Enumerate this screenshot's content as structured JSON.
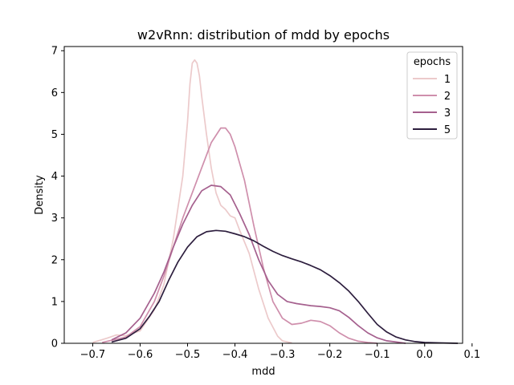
{
  "chart_data": {
    "type": "line",
    "title": "w2vRnn: distribution of mdd by epochs",
    "xlabel": "mdd",
    "ylabel": "Density",
    "xlim": [
      -0.76,
      0.08
    ],
    "ylim": [
      0,
      7.1
    ],
    "xticks": [
      -0.7,
      -0.6,
      -0.5,
      -0.4,
      -0.3,
      -0.2,
      -0.1,
      0.0,
      0.1
    ],
    "xtick_labels": [
      "−0.7",
      "−0.6",
      "−0.5",
      "−0.4",
      "−0.3",
      "−0.2",
      "−0.1",
      "0.0",
      "0.1"
    ],
    "yticks": [
      0,
      1,
      2,
      3,
      4,
      5,
      6,
      7
    ],
    "ytick_labels": [
      "0",
      "1",
      "2",
      "3",
      "4",
      "5",
      "6",
      "7"
    ],
    "grid": false,
    "legend": {
      "title": "epochs",
      "placement": "top-right"
    },
    "series": [
      {
        "name": "1",
        "color": "#eccacb",
        "points": [
          [
            -0.7,
            0.02
          ],
          [
            -0.67,
            0.12
          ],
          [
            -0.65,
            0.2
          ],
          [
            -0.63,
            0.18
          ],
          [
            -0.6,
            0.3
          ],
          [
            -0.57,
            0.8
          ],
          [
            -0.55,
            1.4
          ],
          [
            -0.53,
            2.5
          ],
          [
            -0.51,
            4.0
          ],
          [
            -0.5,
            5.3
          ],
          [
            -0.495,
            6.2
          ],
          [
            -0.49,
            6.7
          ],
          [
            -0.485,
            6.78
          ],
          [
            -0.48,
            6.7
          ],
          [
            -0.475,
            6.4
          ],
          [
            -0.47,
            5.9
          ],
          [
            -0.46,
            5.0
          ],
          [
            -0.45,
            4.2
          ],
          [
            -0.44,
            3.6
          ],
          [
            -0.43,
            3.3
          ],
          [
            -0.42,
            3.2
          ],
          [
            -0.41,
            3.05
          ],
          [
            -0.4,
            3.0
          ],
          [
            -0.39,
            2.7
          ],
          [
            -0.37,
            2.15
          ],
          [
            -0.35,
            1.3
          ],
          [
            -0.33,
            0.6
          ],
          [
            -0.31,
            0.17
          ],
          [
            -0.3,
            0.06
          ],
          [
            -0.28,
            0.01
          ]
        ]
      },
      {
        "name": "2",
        "color": "#cf8fac",
        "points": [
          [
            -0.68,
            0.02
          ],
          [
            -0.63,
            0.15
          ],
          [
            -0.6,
            0.4
          ],
          [
            -0.57,
            1.0
          ],
          [
            -0.55,
            1.6
          ],
          [
            -0.53,
            2.3
          ],
          [
            -0.51,
            3.0
          ],
          [
            -0.49,
            3.6
          ],
          [
            -0.47,
            4.2
          ],
          [
            -0.45,
            4.8
          ],
          [
            -0.43,
            5.15
          ],
          [
            -0.42,
            5.15
          ],
          [
            -0.41,
            5.0
          ],
          [
            -0.4,
            4.7
          ],
          [
            -0.38,
            3.9
          ],
          [
            -0.36,
            2.8
          ],
          [
            -0.34,
            1.8
          ],
          [
            -0.32,
            1.0
          ],
          [
            -0.3,
            0.6
          ],
          [
            -0.28,
            0.45
          ],
          [
            -0.26,
            0.48
          ],
          [
            -0.24,
            0.55
          ],
          [
            -0.22,
            0.52
          ],
          [
            -0.2,
            0.42
          ],
          [
            -0.18,
            0.25
          ],
          [
            -0.16,
            0.12
          ],
          [
            -0.14,
            0.05
          ],
          [
            -0.12,
            0.02
          ],
          [
            -0.1,
            0.0
          ]
        ]
      },
      {
        "name": "3",
        "color": "#a5608e",
        "points": [
          [
            -0.66,
            0.08
          ],
          [
            -0.63,
            0.25
          ],
          [
            -0.6,
            0.6
          ],
          [
            -0.57,
            1.2
          ],
          [
            -0.55,
            1.7
          ],
          [
            -0.53,
            2.3
          ],
          [
            -0.51,
            2.85
          ],
          [
            -0.49,
            3.3
          ],
          [
            -0.47,
            3.65
          ],
          [
            -0.45,
            3.78
          ],
          [
            -0.43,
            3.75
          ],
          [
            -0.41,
            3.55
          ],
          [
            -0.39,
            3.1
          ],
          [
            -0.37,
            2.6
          ],
          [
            -0.35,
            2.0
          ],
          [
            -0.33,
            1.5
          ],
          [
            -0.31,
            1.17
          ],
          [
            -0.29,
            1.0
          ],
          [
            -0.27,
            0.95
          ],
          [
            -0.24,
            0.9
          ],
          [
            -0.22,
            0.88
          ],
          [
            -0.2,
            0.85
          ],
          [
            -0.18,
            0.78
          ],
          [
            -0.16,
            0.62
          ],
          [
            -0.14,
            0.42
          ],
          [
            -0.12,
            0.25
          ],
          [
            -0.1,
            0.13
          ],
          [
            -0.08,
            0.06
          ],
          [
            -0.06,
            0.03
          ],
          [
            -0.04,
            0.0
          ]
        ]
      },
      {
        "name": "5",
        "color": "#2d1e3e",
        "points": [
          [
            -0.66,
            0.03
          ],
          [
            -0.63,
            0.12
          ],
          [
            -0.6,
            0.35
          ],
          [
            -0.58,
            0.65
          ],
          [
            -0.56,
            1.0
          ],
          [
            -0.54,
            1.5
          ],
          [
            -0.52,
            1.95
          ],
          [
            -0.5,
            2.3
          ],
          [
            -0.48,
            2.55
          ],
          [
            -0.46,
            2.67
          ],
          [
            -0.44,
            2.7
          ],
          [
            -0.42,
            2.68
          ],
          [
            -0.4,
            2.62
          ],
          [
            -0.38,
            2.55
          ],
          [
            -0.36,
            2.45
          ],
          [
            -0.34,
            2.32
          ],
          [
            -0.32,
            2.2
          ],
          [
            -0.3,
            2.1
          ],
          [
            -0.28,
            2.02
          ],
          [
            -0.26,
            1.95
          ],
          [
            -0.24,
            1.86
          ],
          [
            -0.22,
            1.76
          ],
          [
            -0.2,
            1.62
          ],
          [
            -0.18,
            1.45
          ],
          [
            -0.16,
            1.25
          ],
          [
            -0.14,
            1.0
          ],
          [
            -0.12,
            0.72
          ],
          [
            -0.1,
            0.45
          ],
          [
            -0.08,
            0.27
          ],
          [
            -0.06,
            0.15
          ],
          [
            -0.04,
            0.08
          ],
          [
            -0.02,
            0.04
          ],
          [
            0.0,
            0.02
          ],
          [
            0.03,
            0.01
          ],
          [
            0.07,
            0.0
          ]
        ]
      }
    ]
  }
}
